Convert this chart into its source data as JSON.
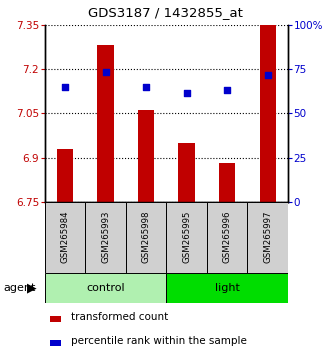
{
  "title": "GDS3187 / 1432855_at",
  "samples": [
    "GSM265984",
    "GSM265993",
    "GSM265998",
    "GSM265995",
    "GSM265996",
    "GSM265997"
  ],
  "bar_values": [
    6.93,
    7.28,
    7.06,
    6.95,
    6.88,
    7.35
  ],
  "dot_values": [
    7.14,
    7.19,
    7.14,
    7.12,
    7.13,
    7.18
  ],
  "bar_color": "#c00000",
  "dot_color": "#0000cc",
  "ylim": [
    6.75,
    7.35
  ],
  "y_ticks": [
    6.75,
    6.9,
    7.05,
    7.2,
    7.35
  ],
  "y_tick_labels": [
    "6.75",
    "6.9",
    "7.05",
    "7.2",
    "7.35"
  ],
  "right_yticks": [
    0,
    25,
    50,
    75,
    100
  ],
  "right_ytick_labels": [
    "0",
    "25",
    "50",
    "75",
    "100%"
  ],
  "groups": [
    {
      "label": "control",
      "indices": [
        0,
        1,
        2
      ],
      "color": "#90ee90"
    },
    {
      "label": "light",
      "indices": [
        3,
        4,
        5
      ],
      "color": "#00cc00"
    }
  ],
  "agent_label": "agent",
  "legend_bar_label": "transformed count",
  "legend_dot_label": "percentile rank within the sample",
  "bar_bottom": 6.75,
  "bar_width": 0.4,
  "gray_color": "#d0d0d0",
  "control_color": "#b0f0b0",
  "light_color": "#00dd00"
}
